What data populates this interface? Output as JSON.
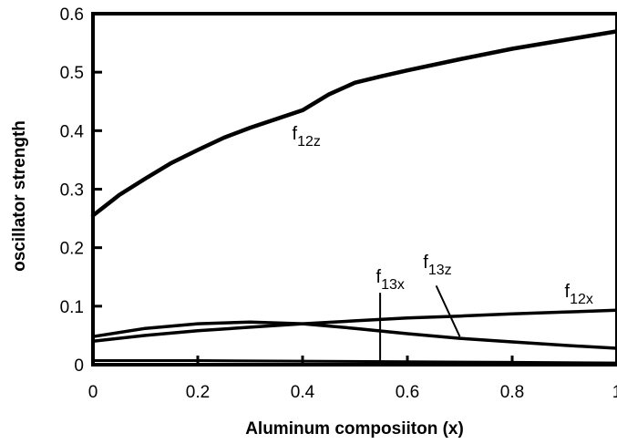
{
  "chart_data": {
    "type": "line",
    "title": "",
    "xlabel": "Aluminum composiiton (x)",
    "ylabel": "oscillator strength",
    "xlim": [
      0,
      1
    ],
    "ylim": [
      0,
      0.6
    ],
    "xticks": [
      "0",
      "0.2",
      "0.4",
      "0.6",
      "0.8",
      "1"
    ],
    "yticks": [
      "0",
      "0.1",
      "0.2",
      "0.3",
      "0.4",
      "0.5",
      "0.6"
    ],
    "grid": false,
    "series": [
      {
        "name": "f12z",
        "x": [
          0,
          0.05,
          0.1,
          0.15,
          0.2,
          0.25,
          0.3,
          0.35,
          0.4,
          0.45,
          0.5,
          0.55,
          0.6,
          0.7,
          0.8,
          0.9,
          1.0
        ],
        "y": [
          0.255,
          0.29,
          0.318,
          0.345,
          0.367,
          0.388,
          0.405,
          0.42,
          0.435,
          0.462,
          0.482,
          0.493,
          0.503,
          0.522,
          0.54,
          0.555,
          0.57
        ]
      },
      {
        "name": "f12x",
        "x": [
          0,
          0.1,
          0.2,
          0.3,
          0.4,
          0.5,
          0.6,
          0.7,
          0.8,
          0.9,
          1.0
        ],
        "y": [
          0.04,
          0.05,
          0.058,
          0.064,
          0.07,
          0.075,
          0.08,
          0.083,
          0.087,
          0.09,
          0.093
        ]
      },
      {
        "name": "f13z",
        "x": [
          0,
          0.1,
          0.2,
          0.3,
          0.4,
          0.5,
          0.6,
          0.7,
          0.8,
          0.9,
          1.0
        ],
        "y": [
          0.048,
          0.062,
          0.07,
          0.073,
          0.07,
          0.062,
          0.053,
          0.045,
          0.039,
          0.033,
          0.028
        ]
      },
      {
        "name": "f13x",
        "x": [
          0,
          0.2,
          0.4,
          0.6,
          0.8,
          1.0
        ],
        "y": [
          0.007,
          0.007,
          0.006,
          0.005,
          0.004,
          0.003
        ]
      }
    ],
    "annotations": [
      {
        "base": "f",
        "sub": "12z",
        "x": 0.38,
        "y": 0.385
      },
      {
        "base": "f",
        "sub": "13x",
        "x": 0.54,
        "y": 0.14
      },
      {
        "base": "f",
        "sub": "13z",
        "x": 0.63,
        "y": 0.165
      },
      {
        "base": "f",
        "sub": "12x",
        "x": 0.9,
        "y": 0.115
      }
    ]
  }
}
